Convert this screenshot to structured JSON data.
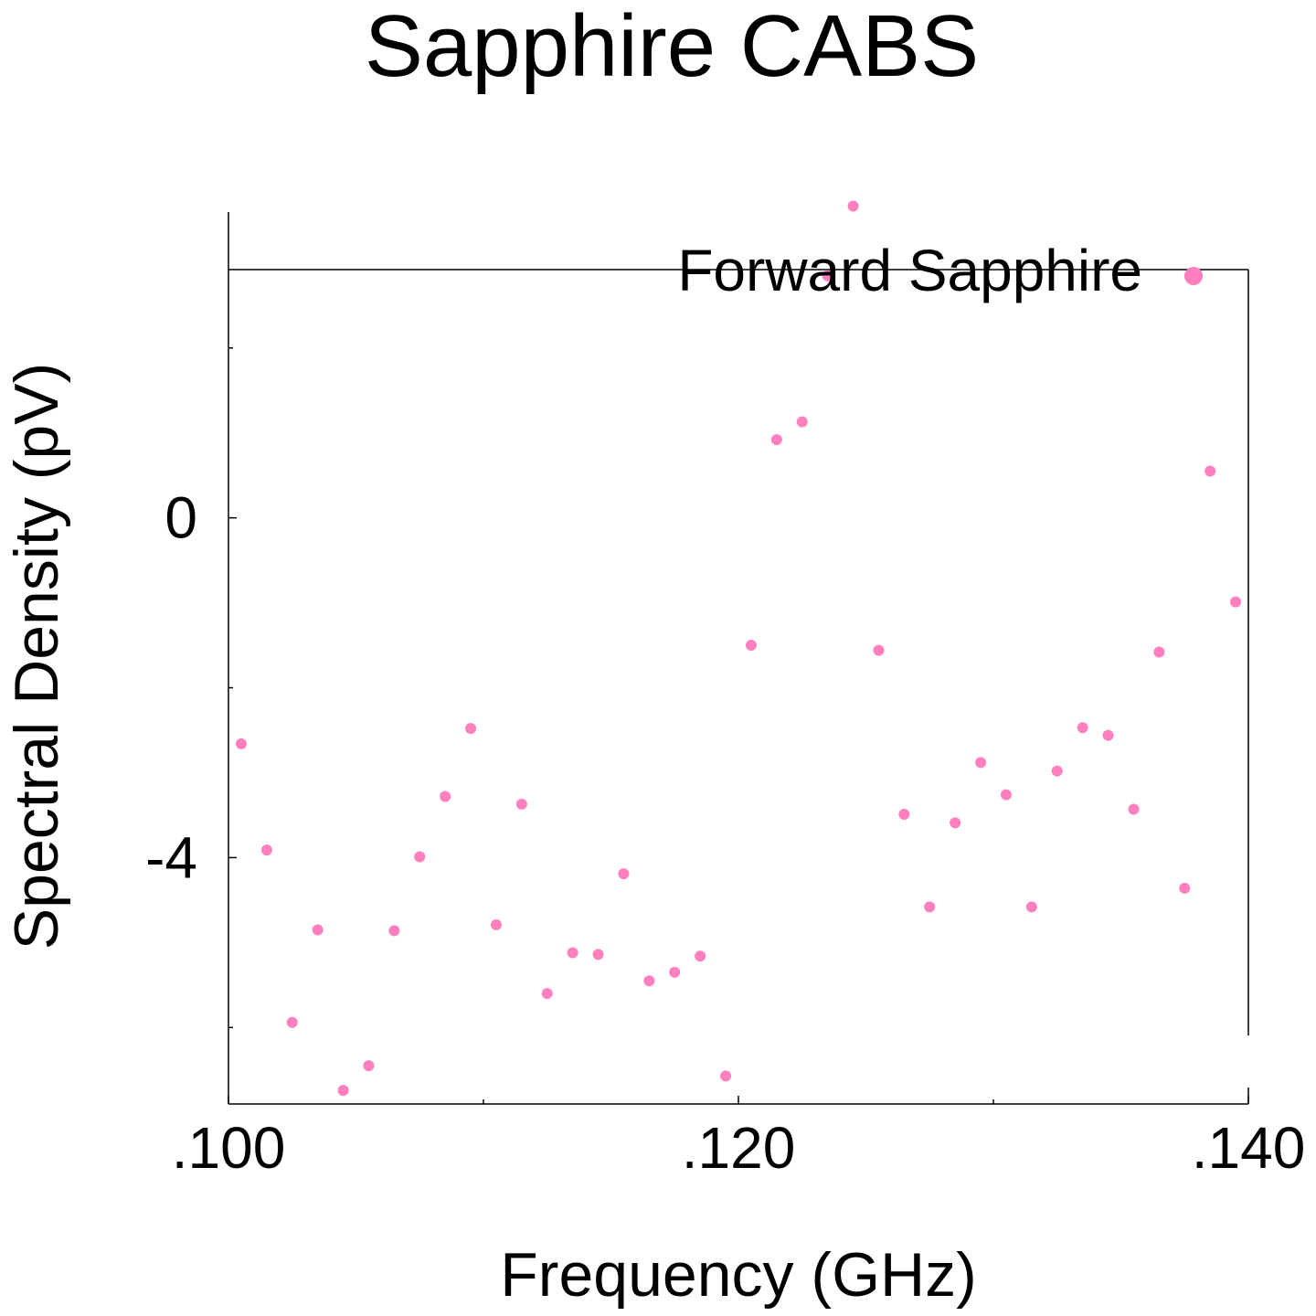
{
  "chart_data": {
    "type": "scatter",
    "title": "Sapphire CABS",
    "xlabel": "Frequency (GHz)",
    "ylabel": "Spectral Density (pV)",
    "xlim": [
      0.1,
      0.14
    ],
    "ylim": [
      -6.9,
      3.6
    ],
    "x_ticks": [
      0.1,
      0.12,
      0.14
    ],
    "x_tick_labels": [
      ".100",
      ".120",
      ".140"
    ],
    "y_ticks": [
      0,
      -4
    ],
    "y_tick_labels": [
      "0",
      "-4"
    ],
    "grid": false,
    "legend_position": "top-right",
    "series": [
      {
        "name": "Forward Sapphire",
        "color": "#ff7fbf",
        "x": [
          0.1005,
          0.1015,
          0.1025,
          0.1035,
          0.1045,
          0.1055,
          0.1065,
          0.1075,
          0.1085,
          0.1095,
          0.1105,
          0.1115,
          0.1125,
          0.1135,
          0.1145,
          0.1155,
          0.1165,
          0.1175,
          0.1185,
          0.1195,
          0.1205,
          0.1215,
          0.1225,
          0.1235,
          0.1245,
          0.1255,
          0.1265,
          0.1275,
          0.1285,
          0.1295,
          0.1305,
          0.1315,
          0.1325,
          0.1335,
          0.1345,
          0.1355,
          0.1365,
          0.1375,
          0.1385,
          0.1395
        ],
        "y": [
          -2.66,
          -3.91,
          -5.94,
          -4.85,
          -6.74,
          -6.45,
          -4.86,
          -3.99,
          -3.28,
          -2.48,
          -4.79,
          -3.37,
          -5.6,
          -5.12,
          -5.14,
          -4.19,
          -5.45,
          -5.35,
          -5.16,
          -6.57,
          -1.5,
          0.92,
          1.13,
          2.85,
          3.67,
          -1.56,
          -3.49,
          -4.58,
          -3.59,
          -2.88,
          -3.26,
          -4.58,
          -2.98,
          -2.47,
          -2.56,
          -3.43,
          -1.58,
          -4.36,
          0.55,
          -0.99
        ]
      }
    ]
  }
}
